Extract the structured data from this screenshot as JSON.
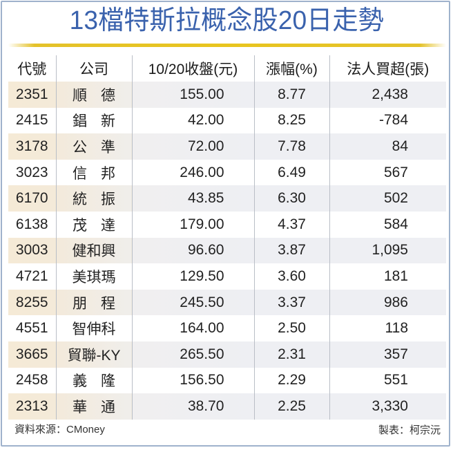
{
  "title": "13檔特斯拉概念股20日走勢",
  "colors": {
    "title": "#3a62ad",
    "accent_rule": "#e8c51e",
    "frame_border": "#9fb2cc",
    "row_shade_left": "#f5ead6",
    "row_shade_right": "#eeeff3"
  },
  "table": {
    "headers": [
      "代號",
      "公司",
      "10/20收盤(元)",
      "漲幅(%)",
      "法人買超(張)"
    ],
    "rows": [
      {
        "code": "2351",
        "name": "順德",
        "close": "155.00",
        "change_pct": "8.77",
        "net_buy": "2,438"
      },
      {
        "code": "2415",
        "name": "錩新",
        "close": "42.00",
        "change_pct": "8.25",
        "net_buy": "-784"
      },
      {
        "code": "3178",
        "name": "公準",
        "close": "72.00",
        "change_pct": "7.78",
        "net_buy": "84"
      },
      {
        "code": "3023",
        "name": "信邦",
        "close": "246.00",
        "change_pct": "6.49",
        "net_buy": "567"
      },
      {
        "code": "6170",
        "name": "統振",
        "close": "43.85",
        "change_pct": "6.30",
        "net_buy": "502"
      },
      {
        "code": "6138",
        "name": "茂達",
        "close": "179.00",
        "change_pct": "4.37",
        "net_buy": "584"
      },
      {
        "code": "3003",
        "name": "健和興",
        "close": "96.60",
        "change_pct": "3.87",
        "net_buy": "1,095"
      },
      {
        "code": "4721",
        "name": "美琪瑪",
        "close": "129.50",
        "change_pct": "3.60",
        "net_buy": "181"
      },
      {
        "code": "8255",
        "name": "朋程",
        "close": "245.50",
        "change_pct": "3.37",
        "net_buy": "986"
      },
      {
        "code": "4551",
        "name": "智伸科",
        "close": "164.00",
        "change_pct": "2.50",
        "net_buy": "118"
      },
      {
        "code": "3665",
        "name": "貿聯-KY",
        "close": "265.50",
        "change_pct": "2.31",
        "net_buy": "357"
      },
      {
        "code": "2458",
        "name": "義隆",
        "close": "156.50",
        "change_pct": "2.29",
        "net_buy": "551"
      },
      {
        "code": "2313",
        "name": "華通",
        "close": "38.70",
        "change_pct": "2.25",
        "net_buy": "3,330"
      }
    ]
  },
  "footer": {
    "source": "資料來源：CMoney",
    "maker": "製表：柯宗沅"
  },
  "chart_data": {
    "type": "table",
    "title": "13檔特斯拉概念股20日走勢",
    "columns": [
      "代號",
      "公司",
      "10/20收盤(元)",
      "漲幅(%)",
      "法人買超(張)"
    ],
    "rows": [
      [
        "2351",
        "順德",
        155.0,
        8.77,
        2438
      ],
      [
        "2415",
        "錩新",
        42.0,
        8.25,
        -784
      ],
      [
        "3178",
        "公準",
        72.0,
        7.78,
        84
      ],
      [
        "3023",
        "信邦",
        246.0,
        6.49,
        567
      ],
      [
        "6170",
        "統振",
        43.85,
        6.3,
        502
      ],
      [
        "6138",
        "茂達",
        179.0,
        4.37,
        584
      ],
      [
        "3003",
        "健和興",
        96.6,
        3.87,
        1095
      ],
      [
        "4721",
        "美琪瑪",
        129.5,
        3.6,
        181
      ],
      [
        "8255",
        "朋程",
        245.5,
        3.37,
        986
      ],
      [
        "4551",
        "智伸科",
        164.0,
        2.5,
        118
      ],
      [
        "3665",
        "貿聯-KY",
        265.5,
        2.31,
        357
      ],
      [
        "2458",
        "義隆",
        156.5,
        2.29,
        551
      ],
      [
        "2313",
        "華通",
        38.7,
        2.25,
        3330
      ]
    ],
    "source": "資料來源：CMoney",
    "credit": "製表：柯宗沅"
  }
}
